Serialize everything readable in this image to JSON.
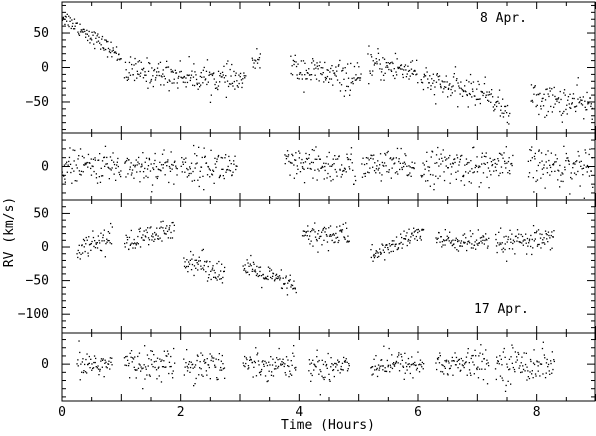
{
  "chart_data": {
    "type": "scatter",
    "xlabel": "Time (Hours)",
    "ylabel": "RV (km/s)",
    "xlim": [
      0,
      9
    ],
    "x_ticks": [
      0,
      2,
      4,
      6,
      8
    ],
    "panels": [
      {
        "id": "apr8-rv",
        "annotation": "8 Apr.",
        "ylim": [
          -95,
          95
        ],
        "y_ticks": [
          -50,
          0,
          50
        ],
        "segments": [
          {
            "t": [
              0.0,
              1.0
            ],
            "v": [
              75,
              15
            ],
            "scatter": 6
          },
          {
            "t": [
              1.05,
              3.1
            ],
            "v": [
              -5,
              -20
            ],
            "scatter": 10
          },
          {
            "t": [
              3.2,
              3.35
            ],
            "v": [
              5,
              15
            ],
            "scatter": 6
          },
          {
            "t": [
              3.85,
              5.05
            ],
            "v": [
              0,
              -20
            ],
            "scatter": 11
          },
          {
            "t": [
              5.15,
              6.0
            ],
            "v": [
              5,
              -5
            ],
            "scatter": 11
          },
          {
            "t": [
              6.05,
              7.25
            ],
            "v": [
              -20,
              -40
            ],
            "scatter": 10
          },
          {
            "t": [
              7.25,
              7.55
            ],
            "v": [
              -45,
              -70
            ],
            "scatter": 9
          },
          {
            "t": [
              7.9,
              8.95
            ],
            "v": [
              -45,
              -55
            ],
            "scatter": 12
          }
        ]
      },
      {
        "id": "apr8-residuals",
        "annotation": "",
        "ylim": [
          -38,
          38
        ],
        "y_ticks": [
          0
        ],
        "segments": [
          {
            "t": [
              0.0,
              1.0
            ],
            "v": [
              0,
              0
            ],
            "scatter": 9
          },
          {
            "t": [
              1.05,
              1.95
            ],
            "v": [
              0,
              0
            ],
            "scatter": 10
          },
          {
            "t": [
              2.0,
              2.95
            ],
            "v": [
              0,
              0
            ],
            "scatter": 10
          },
          {
            "t": [
              3.75,
              4.95
            ],
            "v": [
              0,
              0
            ],
            "scatter": 10
          },
          {
            "t": [
              5.05,
              5.95
            ],
            "v": [
              0,
              0
            ],
            "scatter": 9
          },
          {
            "t": [
              6.05,
              7.6
            ],
            "v": [
              0,
              0
            ],
            "scatter": 10
          },
          {
            "t": [
              7.85,
              8.95
            ],
            "v": [
              0,
              0
            ],
            "scatter": 11
          }
        ]
      },
      {
        "id": "apr17-rv",
        "annotation": "17 Apr.",
        "ylim": [
          -128,
          70
        ],
        "y_ticks": [
          -100,
          -50,
          0,
          50
        ],
        "segments": [
          {
            "t": [
              0.25,
              0.85
            ],
            "v": [
              0,
              15
            ],
            "scatter": 9
          },
          {
            "t": [
              1.05,
              1.9
            ],
            "v": [
              5,
              25
            ],
            "scatter": 9
          },
          {
            "t": [
              2.05,
              2.75
            ],
            "v": [
              -15,
              -40
            ],
            "scatter": 9
          },
          {
            "t": [
              3.05,
              3.95
            ],
            "v": [
              -30,
              -60
            ],
            "scatter": 8
          },
          {
            "t": [
              4.05,
              4.85
            ],
            "v": [
              15,
              20
            ],
            "scatter": 10
          },
          {
            "t": [
              5.2,
              6.1
            ],
            "v": [
              -15,
              25
            ],
            "scatter": 7
          },
          {
            "t": [
              6.3,
              7.2
            ],
            "v": [
              10,
              5
            ],
            "scatter": 8
          },
          {
            "t": [
              7.3,
              8.3
            ],
            "v": [
              5,
              10
            ],
            "scatter": 9
          }
        ]
      },
      {
        "id": "apr17-residuals",
        "annotation": "",
        "ylim": [
          -45,
          38
        ],
        "y_ticks": [
          0
        ],
        "segments": [
          {
            "t": [
              0.25,
              0.85
            ],
            "v": [
              0,
              0
            ],
            "scatter": 9
          },
          {
            "t": [
              1.05,
              1.9
            ],
            "v": [
              0,
              0
            ],
            "scatter": 9
          },
          {
            "t": [
              2.05,
              2.75
            ],
            "v": [
              0,
              0
            ],
            "scatter": 10
          },
          {
            "t": [
              3.05,
              3.95
            ],
            "v": [
              0,
              0
            ],
            "scatter": 8
          },
          {
            "t": [
              4.15,
              4.85
            ],
            "v": [
              -5,
              0
            ],
            "scatter": 10
          },
          {
            "t": [
              5.2,
              6.1
            ],
            "v": [
              0,
              0
            ],
            "scatter": 8
          },
          {
            "t": [
              6.3,
              7.2
            ],
            "v": [
              0,
              0
            ],
            "scatter": 9
          },
          {
            "t": [
              7.3,
              8.3
            ],
            "v": [
              0,
              0
            ],
            "scatter": 11
          }
        ]
      }
    ]
  }
}
